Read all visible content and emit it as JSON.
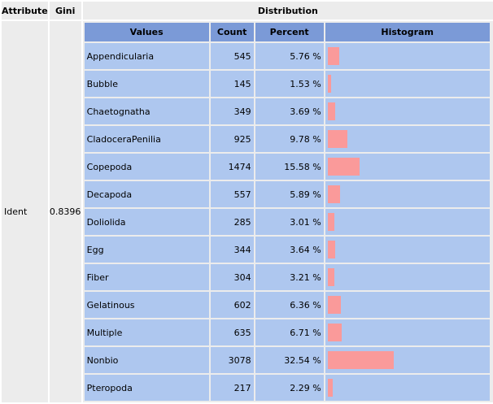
{
  "headers": {
    "attribute": "Attribute",
    "gini": "Gini",
    "distribution": "Distribution"
  },
  "attribute": {
    "name": "Ident",
    "gini": "0.8396"
  },
  "dist_headers": {
    "values": "Values",
    "count": "Count",
    "percent": "Percent",
    "histogram": "Histogram"
  },
  "colors": {
    "header_bg": "#ececec",
    "inner_header_bg": "#7b9ad7",
    "row_bg": "#aec7ef",
    "bar": "#fa9a9a"
  },
  "rows": [
    {
      "value": "Appendicularia",
      "count": "545",
      "percent": "5.76 %",
      "share": 5.76
    },
    {
      "value": "Bubble",
      "count": "145",
      "percent": "1.53 %",
      "share": 1.53
    },
    {
      "value": "Chaetognatha",
      "count": "349",
      "percent": "3.69 %",
      "share": 3.69
    },
    {
      "value": "CladoceraPenilia",
      "count": "925",
      "percent": "9.78 %",
      "share": 9.78
    },
    {
      "value": "Copepoda",
      "count": "1474",
      "percent": "15.58 %",
      "share": 15.58
    },
    {
      "value": "Decapoda",
      "count": "557",
      "percent": "5.89 %",
      "share": 5.89
    },
    {
      "value": "Doliolida",
      "count": "285",
      "percent": "3.01 %",
      "share": 3.01
    },
    {
      "value": "Egg",
      "count": "344",
      "percent": "3.64 %",
      "share": 3.64
    },
    {
      "value": "Fiber",
      "count": "304",
      "percent": "3.21 %",
      "share": 3.21
    },
    {
      "value": "Gelatinous",
      "count": "602",
      "percent": "6.36 %",
      "share": 6.36
    },
    {
      "value": "Multiple",
      "count": "635",
      "percent": "6.71 %",
      "share": 6.71
    },
    {
      "value": "Nonbio",
      "count": "3078",
      "percent": "32.54 %",
      "share": 32.54
    },
    {
      "value": "Pteropoda",
      "count": "217",
      "percent": "2.29 %",
      "share": 2.29
    }
  ]
}
